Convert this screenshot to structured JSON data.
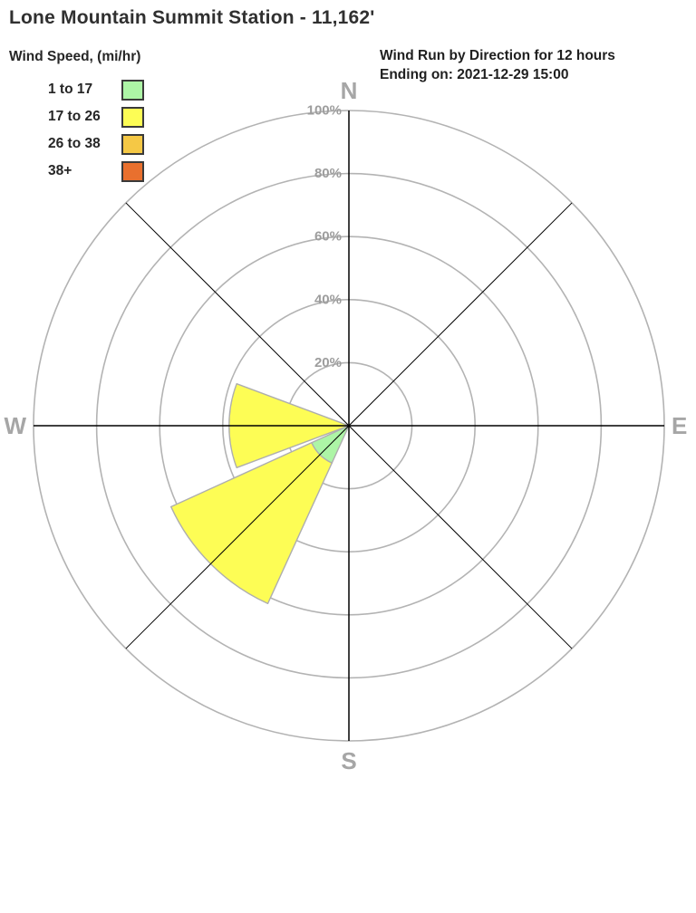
{
  "title": "Lone Mountain Summit Station - 11,162'",
  "legend": {
    "title": "Wind Speed, (mi/hr)"
  },
  "header": {
    "line1": "Wind Run by Direction for 12 hours",
    "line2": "Ending on: 2021-12-29 15:00"
  },
  "chart_data": {
    "type": "wind_rose",
    "title": "Wind Run by Direction for 12 hours",
    "subtitle": "Ending on: 2021-12-29 15:00",
    "units_label": "Wind Speed, (mi/hr)",
    "radial_axis": "percent of wind run",
    "ring_ticks_pct": [
      20,
      40,
      60,
      80,
      100
    ],
    "ring_max_pct": 100,
    "direction_labels": [
      {
        "label": "N",
        "azimuth_deg": 0
      },
      {
        "label": "E",
        "azimuth_deg": 90
      },
      {
        "label": "S",
        "azimuth_deg": 180
      },
      {
        "label": "W",
        "azimuth_deg": 270
      }
    ],
    "speed_bins": [
      {
        "label": "1 to 17",
        "color": "#adf5a6"
      },
      {
        "label": "17 to 26",
        "color": "#fdfd55"
      },
      {
        "label": "26 to 38",
        "color": "#f5c845"
      },
      {
        "label": "38+",
        "color": "#e9702e"
      }
    ],
    "petals": [
      {
        "direction": "W",
        "azimuth_deg": 270,
        "total_pct": 38,
        "segments": [
          {
            "bin": "17 to 26",
            "from_pct": 0,
            "to_pct": 38
          }
        ]
      },
      {
        "direction": "SW",
        "azimuth_deg": 225,
        "total_pct": 62,
        "segments": [
          {
            "bin": "1 to 17",
            "from_pct": 0,
            "to_pct": 13
          },
          {
            "bin": "17 to 26",
            "from_pct": 13,
            "to_pct": 62
          }
        ]
      }
    ],
    "sector_width_deg": 41,
    "grid_color": "#b3b3b3",
    "axis_color": "#000000",
    "tick_label_color": "#9d9d9d",
    "direction_label_color": "#a6a6a6"
  }
}
